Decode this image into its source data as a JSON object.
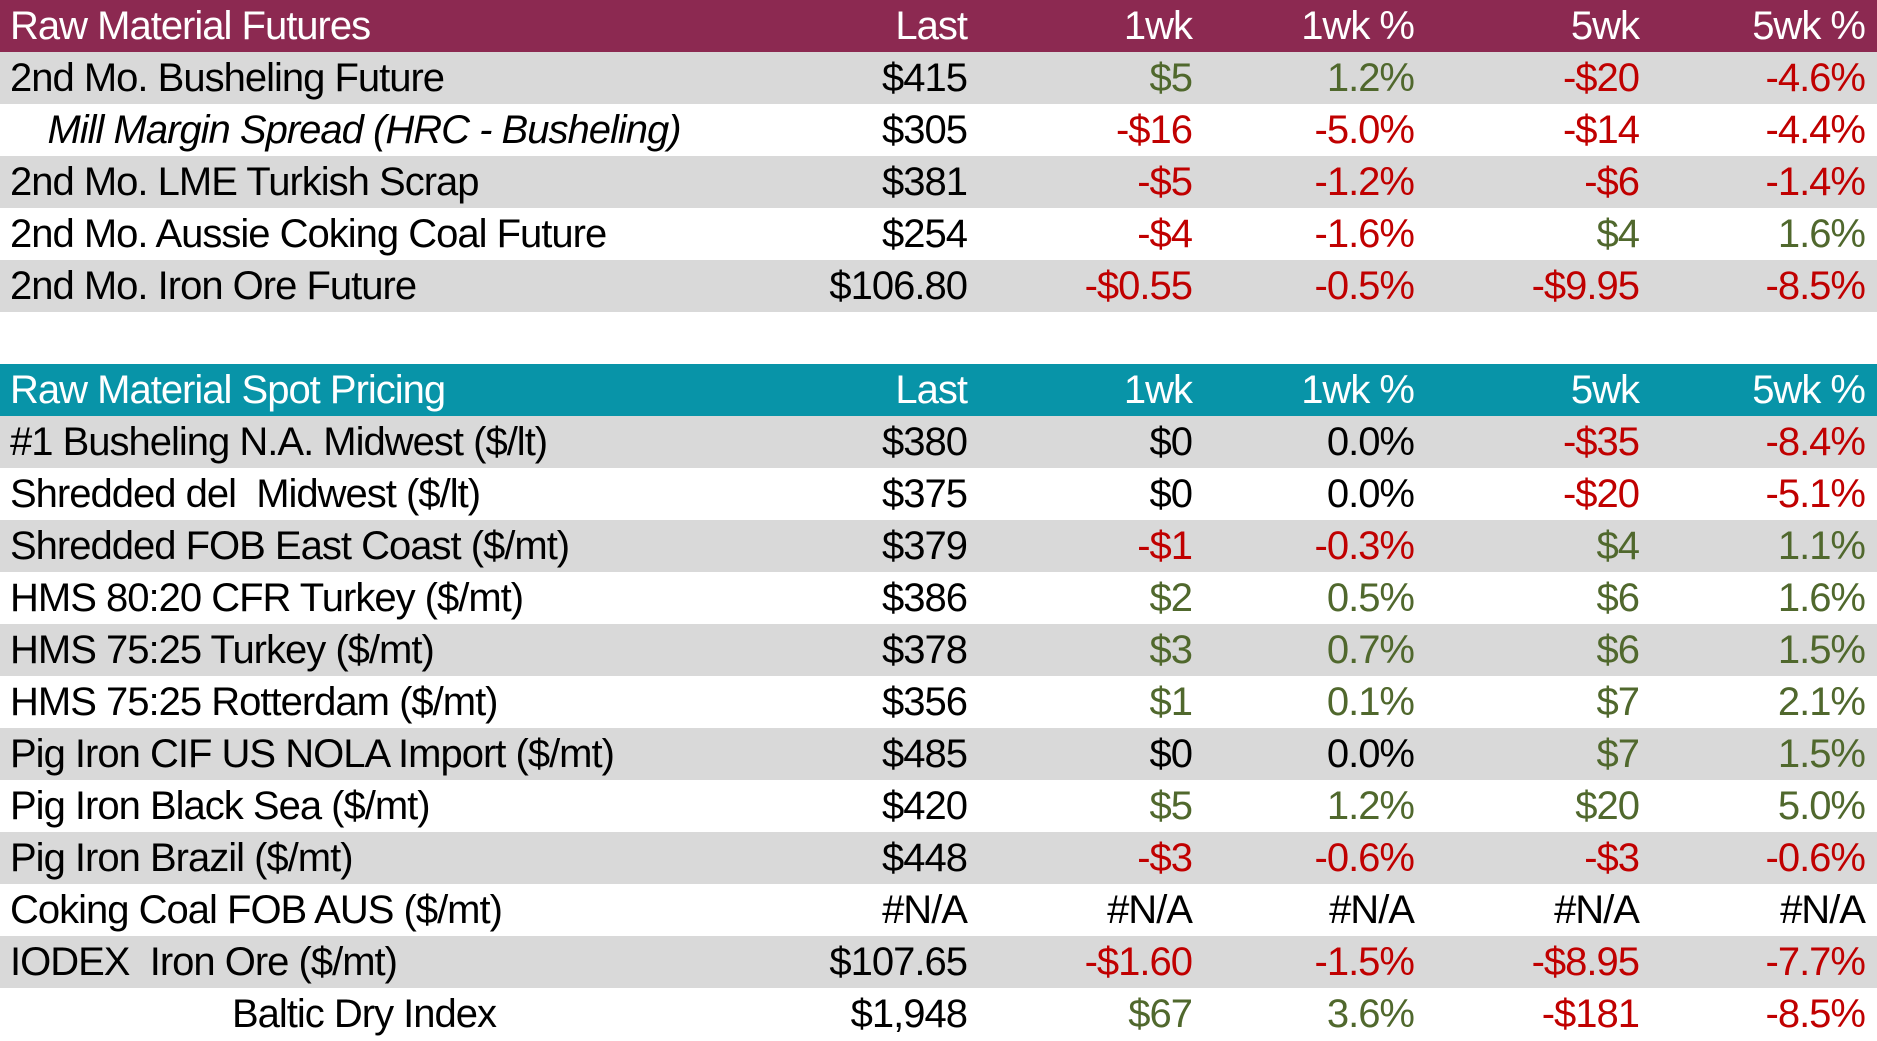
{
  "colors": {
    "futures_header_bg": "#8C2951",
    "spot_header_bg": "#0894A8",
    "stripe_row_bg": "#D9D9D9",
    "plain_row_bg": "#FFFFFF",
    "header_text": "#FFFFFF",
    "positive_text": "#50682D",
    "negative_text": "#C00000",
    "neutral_text": "#000000"
  },
  "chart_data": [
    {
      "type": "table",
      "title": "Raw Material Futures",
      "columns": [
        "Last",
        "1wk",
        "1wk %",
        "5wk",
        "5wk %"
      ],
      "rows": [
        {
          "label": "2nd Mo. Busheling Future",
          "style": "",
          "values": [
            "$415",
            "$5",
            "1.2%",
            "-$20",
            "-4.6%"
          ],
          "colors": [
            "k",
            "g",
            "g",
            "r",
            "r"
          ]
        },
        {
          "label": "Mill Margin Spread (HRC - Busheling)",
          "style": "italic-center",
          "values": [
            "$305",
            "-$16",
            "-5.0%",
            "-$14",
            "-4.4%"
          ],
          "colors": [
            "k",
            "r",
            "r",
            "r",
            "r"
          ]
        },
        {
          "label": "2nd Mo. LME Turkish Scrap",
          "style": "",
          "values": [
            "$381",
            "-$5",
            "-1.2%",
            "-$6",
            "-1.4%"
          ],
          "colors": [
            "k",
            "r",
            "r",
            "r",
            "r"
          ]
        },
        {
          "label": "2nd Mo. Aussie Coking Coal Future",
          "style": "",
          "values": [
            "$254",
            "-$4",
            "-1.6%",
            "$4",
            "1.6%"
          ],
          "colors": [
            "k",
            "r",
            "r",
            "g",
            "g"
          ]
        },
        {
          "label": "2nd Mo. Iron Ore Future",
          "style": "",
          "values": [
            "$106.80",
            "-$0.55",
            "-0.5%",
            "-$9.95",
            "-8.5%"
          ],
          "colors": [
            "k",
            "r",
            "r",
            "r",
            "r"
          ]
        }
      ]
    },
    {
      "type": "table",
      "title": "Raw Material Spot Pricing",
      "columns": [
        "Last",
        "1wk",
        "1wk %",
        "5wk",
        "5wk %"
      ],
      "rows": [
        {
          "label": "#1 Busheling N.A. Midwest ($/lt)",
          "style": "",
          "values": [
            "$380",
            "$0",
            "0.0%",
            "-$35",
            "-8.4%"
          ],
          "colors": [
            "k",
            "k",
            "k",
            "r",
            "r"
          ]
        },
        {
          "label": "Shredded del  Midwest ($/lt)",
          "style": "",
          "values": [
            "$375",
            "$0",
            "0.0%",
            "-$20",
            "-5.1%"
          ],
          "colors": [
            "k",
            "k",
            "k",
            "r",
            "r"
          ]
        },
        {
          "label": "Shredded FOB East Coast ($/mt)",
          "style": "",
          "values": [
            "$379",
            "-$1",
            "-0.3%",
            "$4",
            "1.1%"
          ],
          "colors": [
            "k",
            "r",
            "r",
            "g",
            "g"
          ]
        },
        {
          "label": "HMS 80:20 CFR Turkey ($/mt)",
          "style": "",
          "values": [
            "$386",
            "$2",
            "0.5%",
            "$6",
            "1.6%"
          ],
          "colors": [
            "k",
            "g",
            "g",
            "g",
            "g"
          ]
        },
        {
          "label": "HMS 75:25 Turkey ($/mt)",
          "style": "",
          "values": [
            "$378",
            "$3",
            "0.7%",
            "$6",
            "1.5%"
          ],
          "colors": [
            "k",
            "g",
            "g",
            "g",
            "g"
          ]
        },
        {
          "label": "HMS 75:25 Rotterdam ($/mt)",
          "style": "",
          "values": [
            "$356",
            "$1",
            "0.1%",
            "$7",
            "2.1%"
          ],
          "colors": [
            "k",
            "g",
            "g",
            "g",
            "g"
          ]
        },
        {
          "label": "Pig Iron CIF US NOLA Import ($/mt)",
          "style": "",
          "values": [
            "$485",
            "$0",
            "0.0%",
            "$7",
            "1.5%"
          ],
          "colors": [
            "k",
            "k",
            "k",
            "g",
            "g"
          ]
        },
        {
          "label": "Pig Iron Black Sea ($/mt)",
          "style": "",
          "values": [
            "$420",
            "$5",
            "1.2%",
            "$20",
            "5.0%"
          ],
          "colors": [
            "k",
            "g",
            "g",
            "g",
            "g"
          ]
        },
        {
          "label": "Pig Iron Brazil ($/mt)",
          "style": "",
          "values": [
            "$448",
            "-$3",
            "-0.6%",
            "-$3",
            "-0.6%"
          ],
          "colors": [
            "k",
            "r",
            "r",
            "r",
            "r"
          ]
        },
        {
          "label": "Coking Coal FOB AUS ($/mt)",
          "style": "",
          "values": [
            "#N/A",
            "#N/A",
            "#N/A",
            "#N/A",
            "#N/A"
          ],
          "colors": [
            "k",
            "k",
            "k",
            "k",
            "k"
          ]
        },
        {
          "label": "IODEX  Iron Ore ($/mt)",
          "style": "",
          "values": [
            "$107.65",
            "-$1.60",
            "-1.5%",
            "-$8.95",
            "-7.7%"
          ],
          "colors": [
            "k",
            "r",
            "r",
            "r",
            "r"
          ]
        },
        {
          "label": "Baltic Dry Index",
          "style": "center",
          "values": [
            "$1,948",
            "$67",
            "3.6%",
            "-$181",
            "-8.5%"
          ],
          "colors": [
            "k",
            "g",
            "g",
            "r",
            "r"
          ]
        }
      ]
    }
  ]
}
